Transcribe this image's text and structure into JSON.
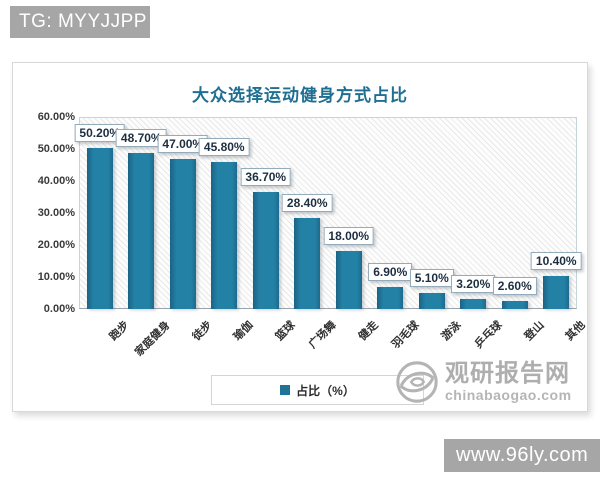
{
  "badges": {
    "top": "TG: MYYJJPP",
    "bottom": "www.96ly.com"
  },
  "watermark": {
    "name": "观研报告网",
    "domain": "chinabaogao.com"
  },
  "chart_data": {
    "type": "bar",
    "title": "大众选择运动健身方式占比",
    "categories": [
      "跑步",
      "家庭健身",
      "徒步",
      "瑜伽",
      "篮球",
      "广场舞",
      "健走",
      "羽毛球",
      "游泳",
      "乒乓球",
      "登山",
      "其他"
    ],
    "values": [
      50.2,
      48.7,
      47.0,
      45.8,
      36.7,
      28.4,
      18.0,
      6.9,
      5.1,
      3.2,
      2.6,
      10.4
    ],
    "value_labels": [
      "50.20%",
      "48.70%",
      "47.00%",
      "45.80%",
      "36.70%",
      "28.40%",
      "18.00%",
      "6.90%",
      "5.10%",
      "3.20%",
      "2.60%",
      "10.40%"
    ],
    "legend": [
      "占比（%）"
    ],
    "legend_position": "bottom",
    "ylim": [
      0,
      60
    ],
    "ytick_step": 10,
    "ytick_labels": [
      "0.00%",
      "10.00%",
      "20.00%",
      "30.00%",
      "40.00%",
      "50.00%",
      "60.00%"
    ],
    "grid": false,
    "xlabel": "",
    "ylabel": "",
    "bar_color": "#2481a6",
    "title_color": "#1f6f93",
    "label_box_border": "#93abbb"
  }
}
